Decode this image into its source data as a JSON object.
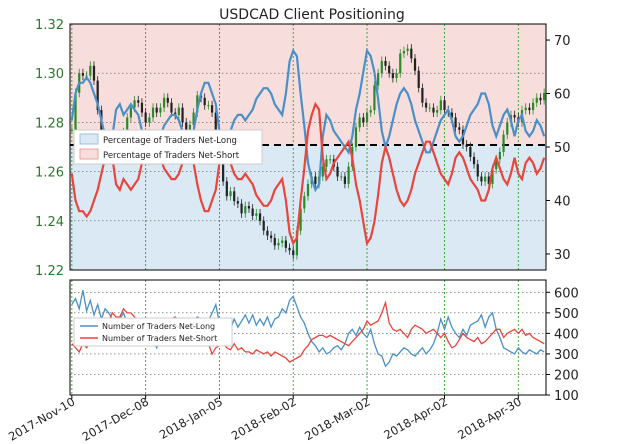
{
  "title": "USDCAD Client Positioning",
  "colors": {
    "long_line": "#4a90c8",
    "short_line": "#e8453c",
    "long_fill": "#dbe9f5",
    "short_fill": "#f7dedc",
    "candle_up": "#2a8a2a",
    "candle_down": "#222222",
    "grid": "#2ca02c",
    "axis_price": "#2a7a2a"
  },
  "chart_data": [
    {
      "type": "line",
      "title": "USDCAD Client Positioning",
      "price_axis": {
        "ylim": [
          1.22,
          1.32
        ],
        "ticks": [
          "1.22",
          "1.24",
          "1.26",
          "1.28",
          "1.30",
          "1.32"
        ]
      },
      "percent_axis": {
        "ylim": [
          27,
          73
        ],
        "ticks": [
          "30",
          "40",
          "50",
          "60",
          "70"
        ]
      },
      "x_ticks": [
        "2017-Nov-10",
        "2017-Dec-08",
        "2018-Jan-05",
        "2018-Feb-02",
        "2018-Mar-02",
        "2018-Apr-02",
        "2018-Apr-30"
      ],
      "x_tick_index": [
        0,
        20,
        40,
        60,
        80,
        101,
        121
      ],
      "reference_line": 50,
      "series": [
        {
          "name": "Percentage of Traders Net-Long",
          "values": [
            55,
            60,
            62,
            62,
            63,
            62,
            60,
            58,
            55,
            52,
            49,
            52,
            57,
            58,
            56,
            57,
            58,
            57,
            56,
            53,
            51,
            53,
            52,
            51,
            52,
            54,
            55,
            56,
            56,
            55,
            53,
            50,
            48,
            53,
            57,
            60,
            62,
            62,
            60,
            58,
            53,
            52,
            52,
            53,
            55,
            56,
            56,
            55,
            56,
            57,
            59,
            60,
            61,
            61,
            60,
            58,
            57,
            56,
            60,
            66,
            68,
            67,
            60,
            54,
            47,
            44,
            42,
            43,
            52,
            56,
            55,
            53,
            52,
            51,
            50,
            49,
            52,
            57,
            60,
            64,
            68,
            67,
            64,
            59,
            53,
            50,
            52,
            55,
            58,
            60,
            61,
            60,
            58,
            55,
            53,
            51,
            49,
            49,
            51,
            53,
            55,
            56,
            57,
            55,
            52,
            51,
            52,
            54,
            56,
            57,
            58,
            60,
            60,
            58,
            54,
            52,
            54,
            56,
            57,
            55,
            52,
            55,
            56,
            53,
            52,
            53,
            55,
            54,
            52
          ]
        },
        {
          "name": "Percentage of Traders Net-Short",
          "values": [
            45,
            40,
            38,
            38,
            37,
            38,
            40,
            42,
            45,
            48,
            51,
            48,
            43,
            42,
            44,
            43,
            42,
            43,
            44,
            47,
            49,
            47,
            48,
            49,
            48,
            46,
            45,
            44,
            44,
            45,
            47,
            50,
            52,
            47,
            43,
            40,
            38,
            38,
            40,
            42,
            47,
            48,
            48,
            47,
            45,
            44,
            44,
            45,
            44,
            43,
            41,
            40,
            39,
            39,
            40,
            42,
            43,
            44,
            40,
            34,
            32,
            33,
            40,
            46,
            53,
            56,
            58,
            57,
            48,
            44,
            45,
            47,
            48,
            49,
            50,
            51,
            48,
            43,
            40,
            36,
            32,
            33,
            36,
            41,
            47,
            50,
            48,
            45,
            42,
            40,
            39,
            40,
            42,
            45,
            47,
            49,
            51,
            51,
            49,
            47,
            45,
            44,
            43,
            45,
            48,
            49,
            48,
            46,
            44,
            43,
            42,
            40,
            40,
            42,
            46,
            48,
            46,
            44,
            43,
            45,
            48,
            45,
            44,
            47,
            48,
            47,
            45,
            46,
            48
          ]
        },
        {
          "name": "USDCAD",
          "type": "candlestick",
          "values": [
            1.277,
            1.292,
            1.3,
            1.299,
            1.299,
            1.303,
            1.297,
            1.285,
            1.272,
            1.27,
            1.27,
            1.273,
            1.272,
            1.27,
            1.276,
            1.282,
            1.286,
            1.289,
            1.288,
            1.284,
            1.28,
            1.282,
            1.286,
            1.284,
            1.286,
            1.29,
            1.288,
            1.284,
            1.283,
            1.286,
            1.28,
            1.277,
            1.279,
            1.284,
            1.291,
            1.29,
            1.287,
            1.287,
            1.284,
            1.276,
            1.265,
            1.256,
            1.25,
            1.252,
            1.248,
            1.247,
            1.243,
            1.246,
            1.245,
            1.242,
            1.243,
            1.24,
            1.236,
            1.234,
            1.233,
            1.23,
            1.231,
            1.232,
            1.229,
            1.228,
            1.226,
            1.236,
            1.245,
            1.25,
            1.255,
            1.258,
            1.255,
            1.258,
            1.262,
            1.265,
            1.265,
            1.262,
            1.258,
            1.258,
            1.255,
            1.262,
            1.27,
            1.278,
            1.282,
            1.28,
            1.284,
            1.285,
            1.295,
            1.3,
            1.305,
            1.303,
            1.3,
            1.298,
            1.3,
            1.308,
            1.309,
            1.31,
            1.306,
            1.301,
            1.294,
            1.288,
            1.286,
            1.286,
            1.284,
            1.285,
            1.289,
            1.285,
            1.284,
            1.282,
            1.278,
            1.277,
            1.271,
            1.27,
            1.266,
            1.263,
            1.258,
            1.256,
            1.258,
            1.255,
            1.261,
            1.265,
            1.268,
            1.275,
            1.28,
            1.283,
            1.282,
            1.28,
            1.285,
            1.286,
            1.285,
            1.288,
            1.29,
            1.289,
            1.292
          ]
        }
      ]
    },
    {
      "type": "line",
      "ylim": [
        100,
        660
      ],
      "y_ticks": [
        "100",
        "200",
        "300",
        "400",
        "500",
        "600"
      ],
      "series": [
        {
          "name": "Number of Traders Net-Long",
          "values": [
            540,
            570,
            520,
            610,
            510,
            560,
            490,
            540,
            470,
            520,
            500,
            470,
            440,
            470,
            500,
            450,
            470,
            430,
            460,
            400,
            380,
            350,
            380,
            330,
            380,
            350,
            340,
            360,
            390,
            420,
            380,
            410,
            440,
            460,
            480,
            470,
            430,
            460,
            500,
            540,
            450,
            420,
            470,
            420,
            470,
            430,
            460,
            490,
            450,
            490,
            440,
            470,
            440,
            480,
            430,
            470,
            480,
            520,
            500,
            560,
            580,
            530,
            480,
            450,
            400,
            360,
            340,
            310,
            330,
            300,
            310,
            330,
            340,
            320,
            350,
            400,
            420,
            390,
            430,
            400,
            380,
            420,
            350,
            300,
            290,
            240,
            260,
            300,
            290,
            310,
            330,
            320,
            300,
            290,
            310,
            330,
            300,
            320,
            350,
            400,
            470,
            420,
            480,
            430,
            400,
            380,
            420,
            390,
            440,
            450,
            460,
            490,
            430,
            480,
            500,
            420,
            380,
            330,
            320,
            310,
            300,
            330,
            310,
            300,
            320,
            310,
            300,
            320,
            310
          ]
        },
        {
          "name": "Number of Traders Net-Short",
          "values": [
            350,
            330,
            310,
            350,
            330,
            360,
            400,
            420,
            440,
            440,
            460,
            500,
            480,
            480,
            520,
            500,
            500,
            480,
            440,
            420,
            400,
            410,
            410,
            440,
            450,
            460,
            460,
            470,
            480,
            460,
            440,
            470,
            440,
            420,
            420,
            400,
            380,
            350,
            300,
            330,
            340,
            350,
            330,
            320,
            350,
            320,
            330,
            310,
            310,
            300,
            320,
            310,
            300,
            310,
            290,
            310,
            300,
            290,
            280,
            260,
            270,
            280,
            290,
            320,
            340,
            370,
            380,
            390,
            390,
            380,
            390,
            380,
            370,
            360,
            350,
            340,
            360,
            380,
            400,
            420,
            460,
            440,
            450,
            460,
            500,
            550,
            450,
            420,
            410,
            420,
            400,
            380,
            420,
            440,
            430,
            420,
            400,
            410,
            420,
            400,
            380,
            400,
            360,
            330,
            340,
            370,
            400,
            380,
            370,
            360,
            380,
            350,
            360,
            380,
            400,
            420,
            420,
            380,
            400,
            410,
            420,
            400,
            420,
            390,
            400,
            380,
            370,
            360,
            350
          ]
        }
      ]
    }
  ]
}
